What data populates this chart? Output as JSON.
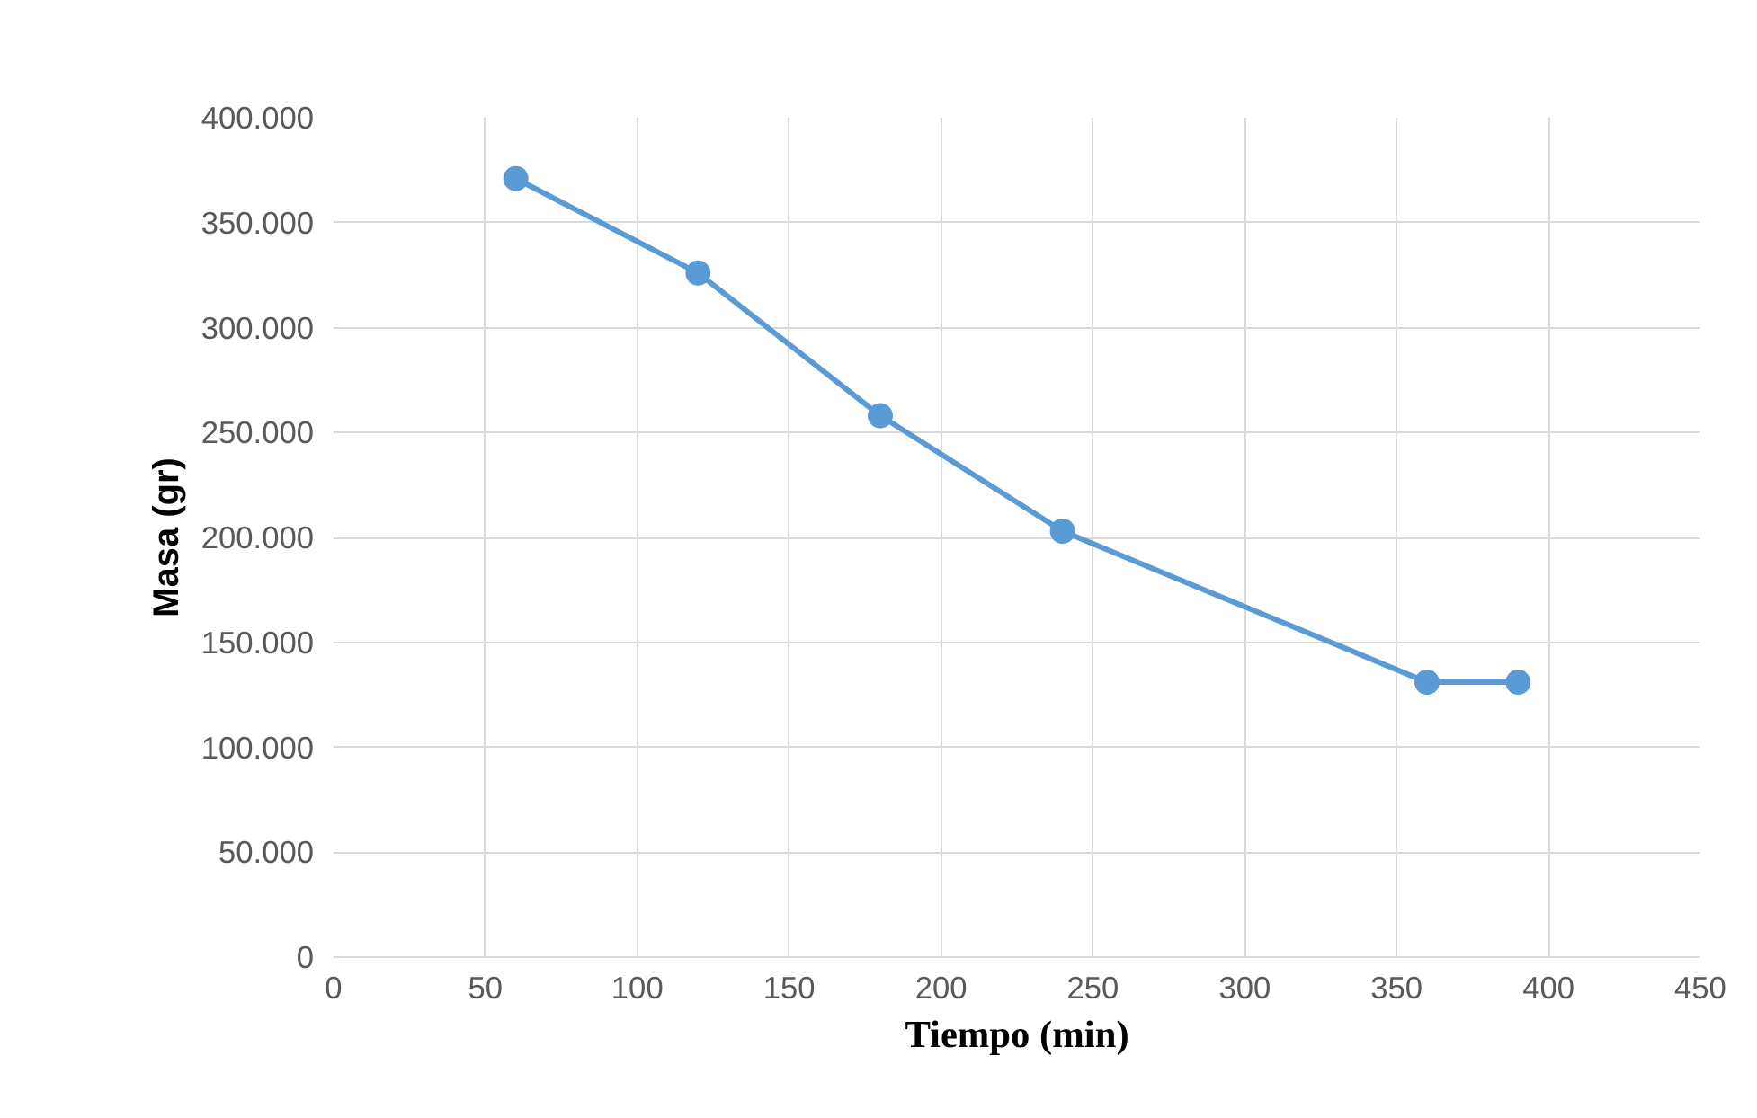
{
  "chart_data": {
    "type": "line",
    "xlabel": "Tiempo (min)",
    "ylabel": "Masa (gr)",
    "x": [
      60,
      120,
      180,
      240,
      360,
      390
    ],
    "series": [
      {
        "color": "#5b9bd5",
        "values": [
          371000,
          326000,
          258000,
          203000,
          131000,
          131000
        ]
      }
    ],
    "xlim": [
      0,
      450
    ],
    "xticks": [
      0,
      50,
      100,
      150,
      200,
      250,
      300,
      350,
      400,
      450
    ],
    "ylim": [
      0,
      400000
    ],
    "yticks": [
      0,
      {
        "value": 50000,
        "label": "50.000"
      },
      {
        "value": 100000,
        "label": "100.000"
      },
      {
        "value": 150000,
        "label": "150.000"
      },
      {
        "value": 200000,
        "label": "200.000"
      },
      {
        "value": 250000,
        "label": "250.000"
      },
      {
        "value": 300000,
        "label": "300.000"
      },
      {
        "value": 350000,
        "label": "350.000"
      },
      {
        "value": 400000,
        "label": "400.000"
      }
    ],
    "grid": true,
    "marker": "circle",
    "line_style": "solid"
  }
}
